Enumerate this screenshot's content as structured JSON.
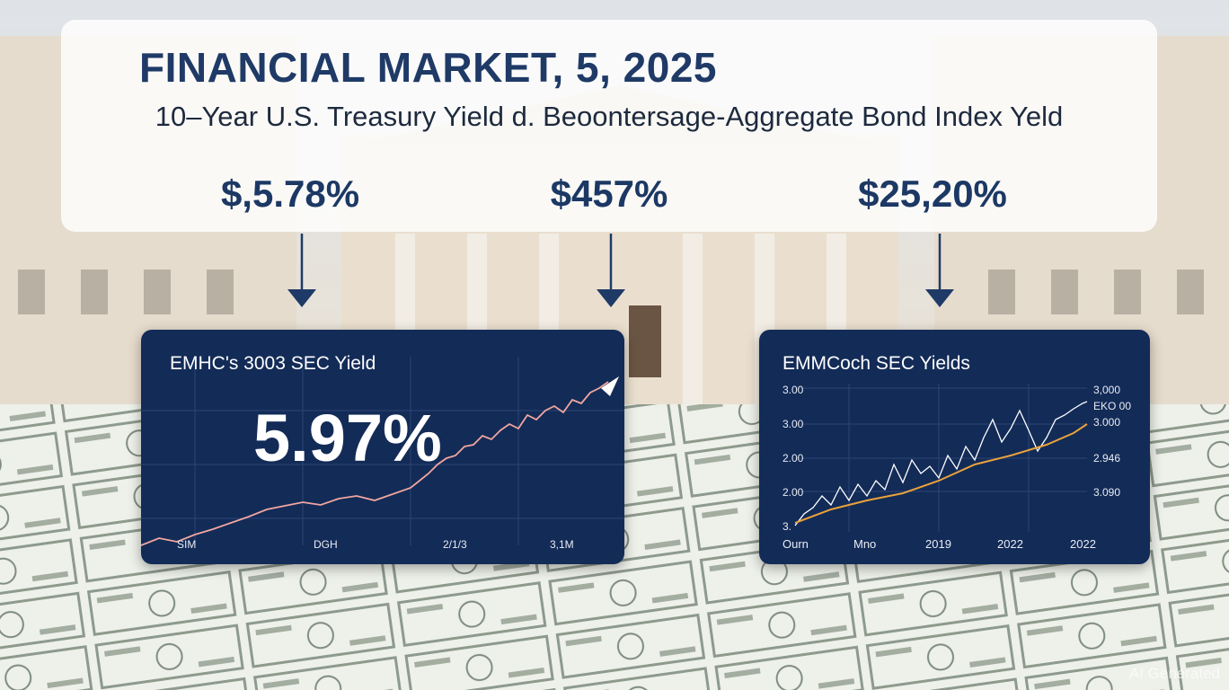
{
  "header": {
    "title": "FINANCIAL MARKET, 5, 2025",
    "subtitle": "10–Year U.S. Treasury Yield d. Beoontersage-Aggregate Bond Index Yeld"
  },
  "stats": [
    "$,5.78%",
    "$457%",
    "$25,20%"
  ],
  "left_panel": {
    "title": "EMHC's 3003 SEC Yield",
    "value": "5.97%",
    "x_labels": [
      "SIM",
      "DGH",
      "2/1/3",
      "3,1M"
    ]
  },
  "right_panel": {
    "title": "EMMCoch SEC Yields",
    "left_labels": [
      "3.00",
      "3.00",
      "2.00",
      "2.00",
      "3."
    ],
    "right_labels": [
      "3,000",
      "EKO 00",
      "3.000",
      "2.946",
      "3.090"
    ],
    "x_labels": [
      "Ourn",
      "Mno",
      "2019",
      "2022",
      "2022"
    ]
  },
  "watermark": "AI Generated"
}
